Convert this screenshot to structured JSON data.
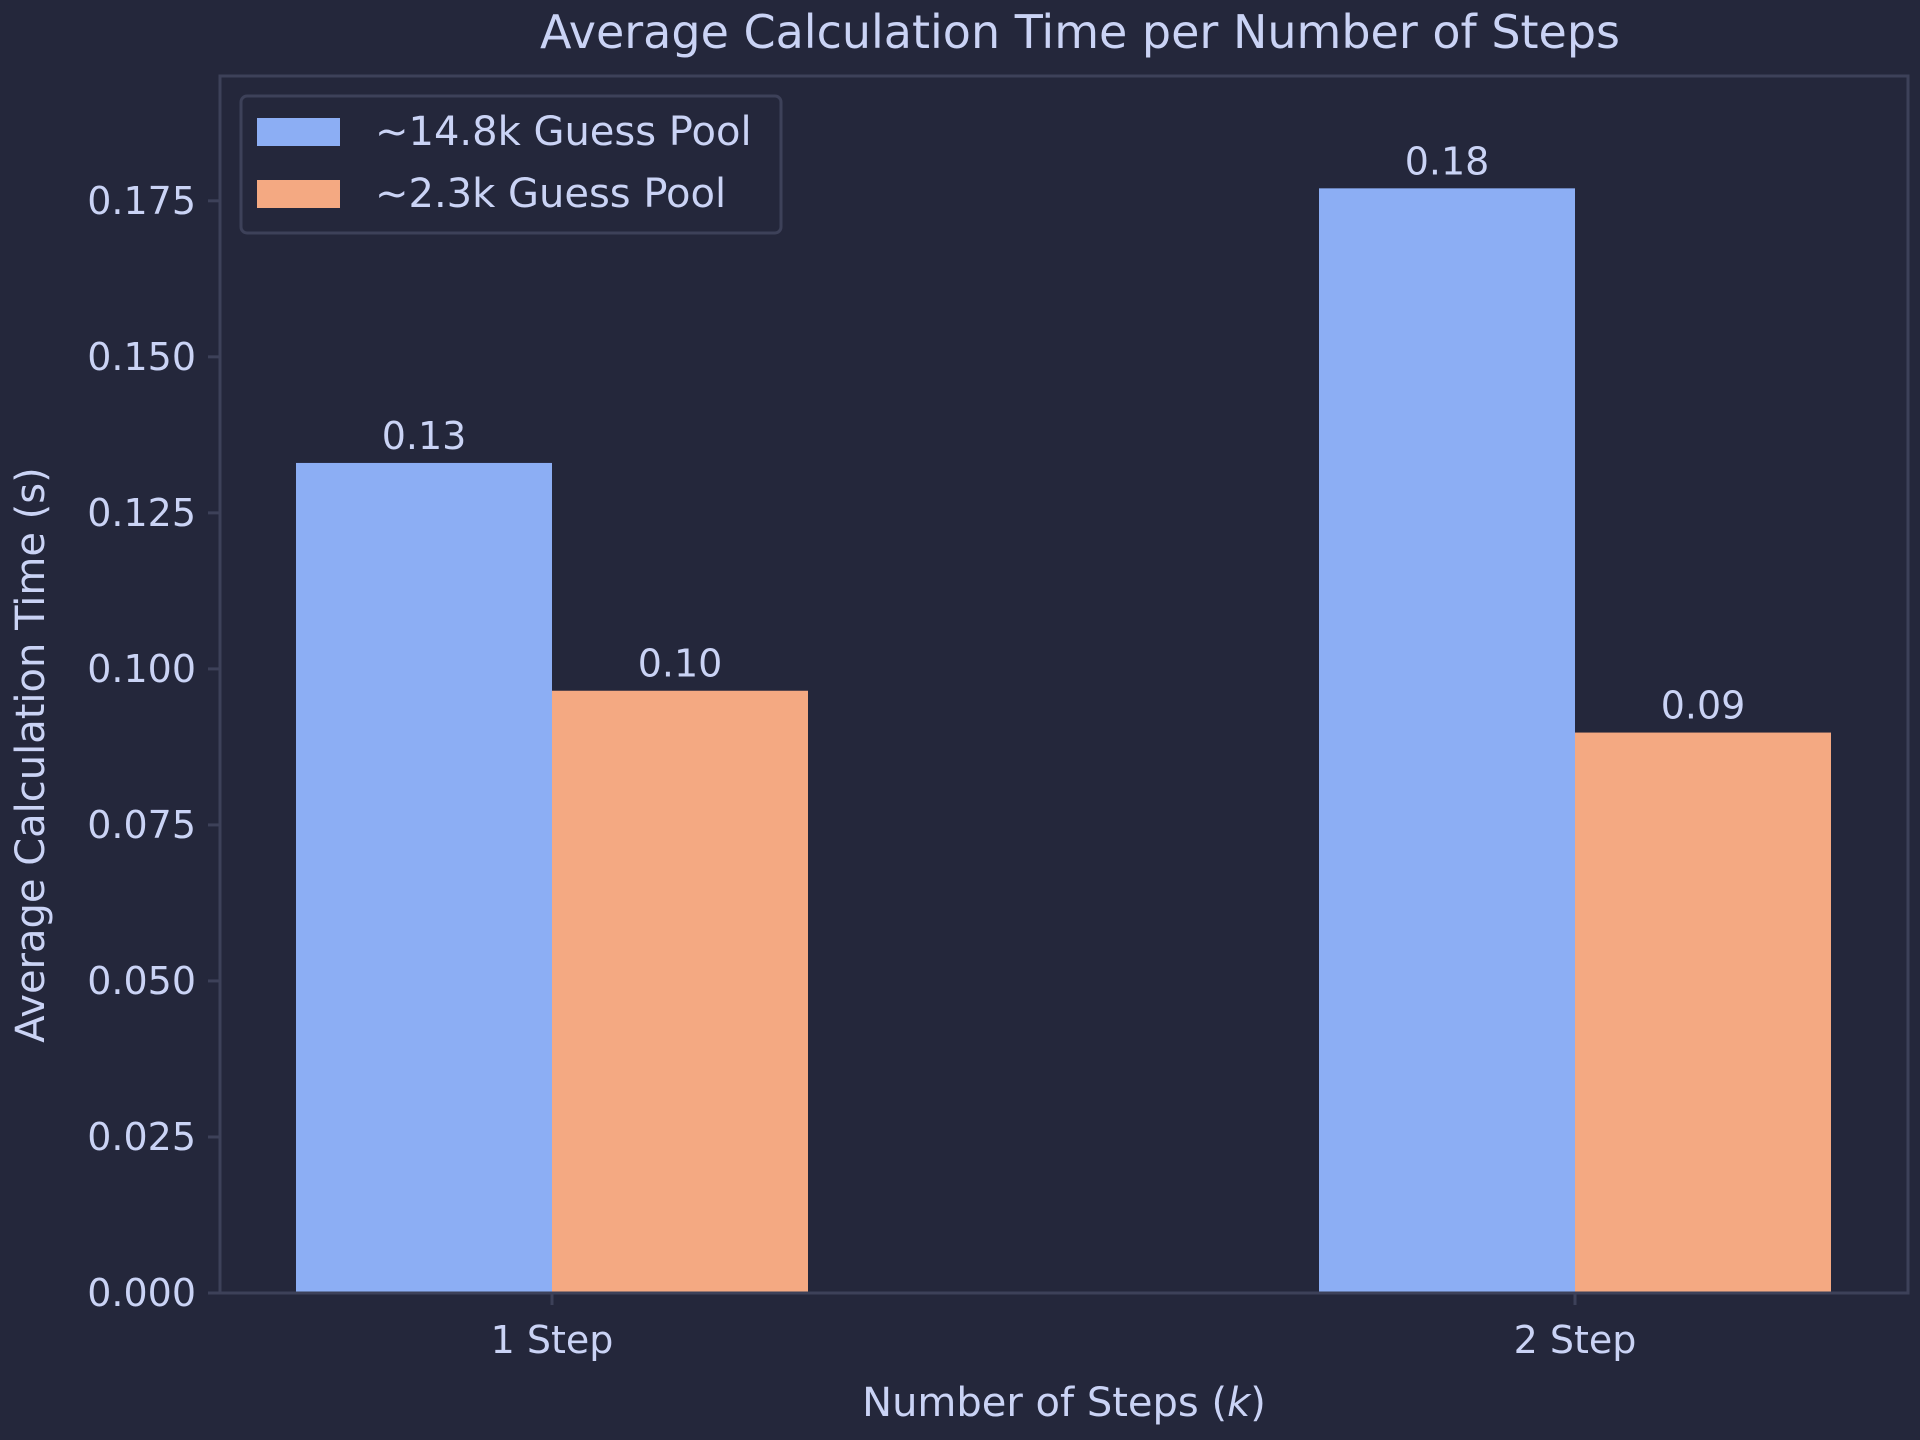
{
  "chart_data": {
    "type": "bar",
    "title": "Average Calculation Time per Number of Steps",
    "xlabel_prefix": "Number of Steps (",
    "xlabel_var": "k",
    "xlabel_suffix": ")",
    "ylabel": "Average Calculation Time (s)",
    "categories": [
      "1 Step",
      "2 Step"
    ],
    "series": [
      {
        "name": "~14.8k Guess Pool",
        "color": "#8caef4",
        "values": [
          0.133,
          0.177
        ],
        "labels": [
          "0.13",
          "0.18"
        ]
      },
      {
        "name": "~2.3k Guess Pool",
        "color": "#f4a982",
        "values": [
          0.0965,
          0.0898
        ],
        "labels": [
          "0.10",
          "0.09"
        ]
      }
    ],
    "ylim": [
      0,
      0.195
    ],
    "yticks": [
      0,
      0.025,
      0.05,
      0.075,
      0.1,
      0.125,
      0.15,
      0.175
    ],
    "ytick_labels": [
      "0.000",
      "0.025",
      "0.050",
      "0.075",
      "0.100",
      "0.125",
      "0.150",
      "0.175"
    ],
    "grid": false,
    "legend_position": "top-left"
  },
  "colors": {
    "background": "#24273b",
    "text": "#cad3f5",
    "axis": "#3d4159"
  }
}
